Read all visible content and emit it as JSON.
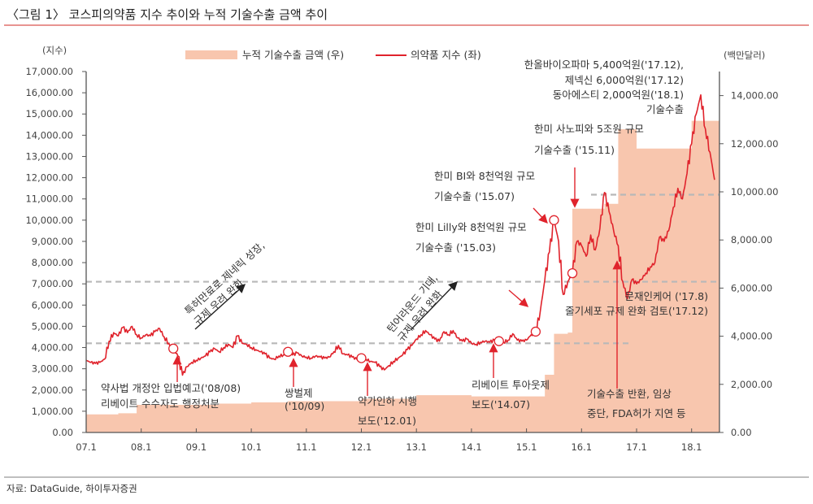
{
  "title": "〈그림 1〉 코스피의약품 지수 추이와 누적 기술수출 금액 추이",
  "source": "자료: DataGuide, 하이투자증권",
  "colors": {
    "line": "#e0232c",
    "area": "#f8c6ae",
    "title_rule": "#d9534f",
    "dashed": "#b8b8b8"
  },
  "chart_data": {
    "type": "line+area",
    "title": "〈그림 1〉 코스피의약품 지수 추이와 누적 기술수출 금액 추이",
    "y_left": {
      "unit_label": "(지수)",
      "range": [
        0,
        17000
      ],
      "ticks": [
        "0.00",
        "1,000.00",
        "2,000.00",
        "3,000.00",
        "4,000.00",
        "5,000.00",
        "6,000.00",
        "7,000.00",
        "8,000.00",
        "9,000.00",
        "10,000.00",
        "11,000.00",
        "12,000.00",
        "13,000.00",
        "14,000.00",
        "15,000.00",
        "16,000.00",
        "17,000.00"
      ]
    },
    "y_right": {
      "unit_label": "(백만달러)",
      "range": [
        0,
        15000
      ],
      "ticks": [
        "0.00",
        "2,000.00",
        "4,000.00",
        "6,000.00",
        "8,000.00",
        "10,000.00",
        "12,000.00",
        "14,000.00"
      ]
    },
    "x_ticks": [
      "07.1",
      "08.1",
      "09.1",
      "10.1",
      "11.1",
      "12.1",
      "13.1",
      "14.1",
      "15.1",
      "16.1",
      "17.1",
      "18.1"
    ],
    "x_range": [
      "2007-01",
      "2018-06"
    ],
    "legend": {
      "position": "top",
      "area_label": "누적 기술수출 금액 (우)",
      "line_label": "의약품 지수 (좌)"
    },
    "grid": false,
    "series": [
      {
        "name": "의약품 지수 (좌)",
        "type": "line",
        "axis": "left",
        "points": [
          [
            "2007-01",
            3400
          ],
          [
            "2007-02",
            3300
          ],
          [
            "2007-03",
            3250
          ],
          [
            "2007-04",
            3300
          ],
          [
            "2007-05",
            3450
          ],
          [
            "2007-06",
            4300
          ],
          [
            "2007-07",
            4700
          ],
          [
            "2007-08",
            4550
          ],
          [
            "2007-09",
            4950
          ],
          [
            "2007-10",
            4700
          ],
          [
            "2007-11",
            5000
          ],
          [
            "2007-12",
            4600
          ],
          [
            "2008-01",
            4450
          ],
          [
            "2008-02",
            4600
          ],
          [
            "2008-03",
            4550
          ],
          [
            "2008-04",
            4750
          ],
          [
            "2008-05",
            4900
          ],
          [
            "2008-06",
            4500
          ],
          [
            "2008-07",
            4200
          ],
          [
            "2008-08",
            3950
          ],
          [
            "2008-09",
            3600
          ],
          [
            "2008-10",
            2700
          ],
          [
            "2008-11",
            3100
          ],
          [
            "2008-12",
            3300
          ],
          [
            "2009-01",
            3400
          ],
          [
            "2009-02",
            3500
          ],
          [
            "2009-03",
            3600
          ],
          [
            "2009-04",
            3800
          ],
          [
            "2009-05",
            3950
          ],
          [
            "2009-06",
            3800
          ],
          [
            "2009-07",
            4000
          ],
          [
            "2009-08",
            4150
          ],
          [
            "2009-09",
            4000
          ],
          [
            "2009-10",
            4550
          ],
          [
            "2009-11",
            4200
          ],
          [
            "2009-12",
            4150
          ],
          [
            "2010-01",
            4000
          ],
          [
            "2010-02",
            3900
          ],
          [
            "2010-03",
            3800
          ],
          [
            "2010-04",
            3700
          ],
          [
            "2010-05",
            3500
          ],
          [
            "2010-06",
            3450
          ],
          [
            "2010-07",
            3600
          ],
          [
            "2010-08",
            3650
          ],
          [
            "2010-09",
            3800
          ],
          [
            "2010-10",
            3650
          ],
          [
            "2010-11",
            3750
          ],
          [
            "2010-12",
            3600
          ],
          [
            "2011-01",
            3550
          ],
          [
            "2011-02",
            3500
          ],
          [
            "2011-03",
            3600
          ],
          [
            "2011-04",
            3550
          ],
          [
            "2011-05",
            3500
          ],
          [
            "2011-06",
            3550
          ],
          [
            "2011-07",
            3800
          ],
          [
            "2011-08",
            4100
          ],
          [
            "2011-09",
            3700
          ],
          [
            "2011-10",
            3650
          ],
          [
            "2011-11",
            3550
          ],
          [
            "2011-12",
            3450
          ],
          [
            "2012-01",
            3500
          ],
          [
            "2012-02",
            3450
          ],
          [
            "2012-03",
            3350
          ],
          [
            "2012-04",
            3300
          ],
          [
            "2012-05",
            3100
          ],
          [
            "2012-06",
            2950
          ],
          [
            "2012-07",
            3150
          ],
          [
            "2012-08",
            3350
          ],
          [
            "2012-09",
            3500
          ],
          [
            "2012-10",
            3650
          ],
          [
            "2012-11",
            3900
          ],
          [
            "2012-12",
            4100
          ],
          [
            "2013-01",
            4400
          ],
          [
            "2013-02",
            4600
          ],
          [
            "2013-03",
            4800
          ],
          [
            "2013-04",
            4600
          ],
          [
            "2013-05",
            4400
          ],
          [
            "2013-06",
            4300
          ],
          [
            "2013-07",
            4750
          ],
          [
            "2013-08",
            4600
          ],
          [
            "2013-09",
            4800
          ],
          [
            "2013-10",
            4450
          ],
          [
            "2013-11",
            4300
          ],
          [
            "2013-12",
            4400
          ],
          [
            "2014-01",
            4200
          ],
          [
            "2014-02",
            4150
          ],
          [
            "2014-03",
            4250
          ],
          [
            "2014-04",
            4300
          ],
          [
            "2014-05",
            4250
          ],
          [
            "2014-06",
            4350
          ],
          [
            "2014-07",
            4300
          ],
          [
            "2014-08",
            4250
          ],
          [
            "2014-09",
            4350
          ],
          [
            "2014-10",
            4650
          ],
          [
            "2014-11",
            4350
          ],
          [
            "2014-12",
            4300
          ],
          [
            "2015-01",
            4350
          ],
          [
            "2015-02",
            4600
          ],
          [
            "2015-03",
            4750
          ],
          [
            "2015-04",
            5700
          ],
          [
            "2015-05",
            7200
          ],
          [
            "2015-06",
            8500
          ],
          [
            "2015-07",
            10000
          ],
          [
            "2015-08",
            9000
          ],
          [
            "2015-09",
            6500
          ],
          [
            "2015-10",
            7100
          ],
          [
            "2015-11",
            7500
          ],
          [
            "2015-12",
            9000
          ],
          [
            "2016-01",
            8800
          ],
          [
            "2016-02",
            8300
          ],
          [
            "2016-03",
            9300
          ],
          [
            "2016-04",
            8600
          ],
          [
            "2016-05",
            9600
          ],
          [
            "2016-06",
            11300
          ],
          [
            "2016-07",
            10400
          ],
          [
            "2016-08",
            9500
          ],
          [
            "2016-09",
            8800
          ],
          [
            "2016-10",
            7100
          ],
          [
            "2016-11",
            6300
          ],
          [
            "2016-12",
            7200
          ],
          [
            "2017-01",
            7000
          ],
          [
            "2017-02",
            7200
          ],
          [
            "2017-03",
            7500
          ],
          [
            "2017-04",
            7800
          ],
          [
            "2017-05",
            8000
          ],
          [
            "2017-06",
            9200
          ],
          [
            "2017-07",
            9000
          ],
          [
            "2017-08",
            9500
          ],
          [
            "2017-09",
            10600
          ],
          [
            "2017-10",
            11500
          ],
          [
            "2017-11",
            11000
          ],
          [
            "2017-12",
            12200
          ],
          [
            "2018-01",
            13600
          ],
          [
            "2018-02",
            15000
          ],
          [
            "2018-03",
            15900
          ],
          [
            "2018-04",
            14300
          ],
          [
            "2018-05",
            13200
          ],
          [
            "2018-06",
            11900
          ]
        ]
      },
      {
        "name": "누적 기술수출 금액 (우)",
        "type": "area-step",
        "axis": "right",
        "points": [
          [
            "2007-01",
            750
          ],
          [
            "2007-08",
            800
          ],
          [
            "2007-12",
            1150
          ],
          [
            "2009-06",
            1200
          ],
          [
            "2010-01",
            1250
          ],
          [
            "2010-09",
            1300
          ],
          [
            "2012-01",
            1400
          ],
          [
            "2013-01",
            1550
          ],
          [
            "2014-01",
            1500
          ],
          [
            "2015-03",
            1500
          ],
          [
            "2015-05",
            2400
          ],
          [
            "2015-07",
            4100
          ],
          [
            "2015-10",
            4150
          ],
          [
            "2015-11",
            9300
          ],
          [
            "2016-06",
            9500
          ],
          [
            "2016-09",
            12600
          ],
          [
            "2017-01",
            11800
          ],
          [
            "2018-01",
            12950
          ],
          [
            "2018-06",
            12950
          ]
        ]
      }
    ],
    "reference_lines_left": [
      4200,
      7100,
      11200
    ],
    "markers": [
      "2008-08",
      "2010-09",
      "2012-01",
      "2014-07",
      "2015-03",
      "2015-07",
      "2015-11"
    ]
  },
  "annotations": {
    "a1": [
      "약사법 개정안 입법예고('08/08)",
      "리베이트 수수자도 행정처분"
    ],
    "a2": [
      "쌍벌제",
      "('10/09)"
    ],
    "a3": [
      "약가인하 시행",
      "보도('12.01)"
    ],
    "a4": [
      "리베이트 투아웃제",
      "보도('14.07)"
    ],
    "a5": [
      "한미 Lilly와 8천억원 규모",
      "기술수출 ('15.03)"
    ],
    "a6": [
      "한미 BI와 8천억원 규모",
      "기술수출 ('15.07)"
    ],
    "a7": [
      "한미 사노피와 5조원 규모",
      "기술수출 ('15.11)"
    ],
    "a8": [
      "한올바이오파마  5,400억원('17.12),",
      "제넥신 6,000억원('17.12)",
      "동아에스티 2,000억원('18.1)",
      "기술수출"
    ],
    "a9": [
      "문재인케어 ('17.8)",
      "줄기세포 규제 완화 검토('17.12)"
    ],
    "a10": [
      "기술수출 반환, 임상",
      "중단, FDA허가 지연 등"
    ],
    "r1": [
      "특허만료로 제네릭 성장,",
      "규제 우려 완화"
    ],
    "r2": [
      "턴어라운드 기대,",
      "규제 우려 완화"
    ]
  }
}
